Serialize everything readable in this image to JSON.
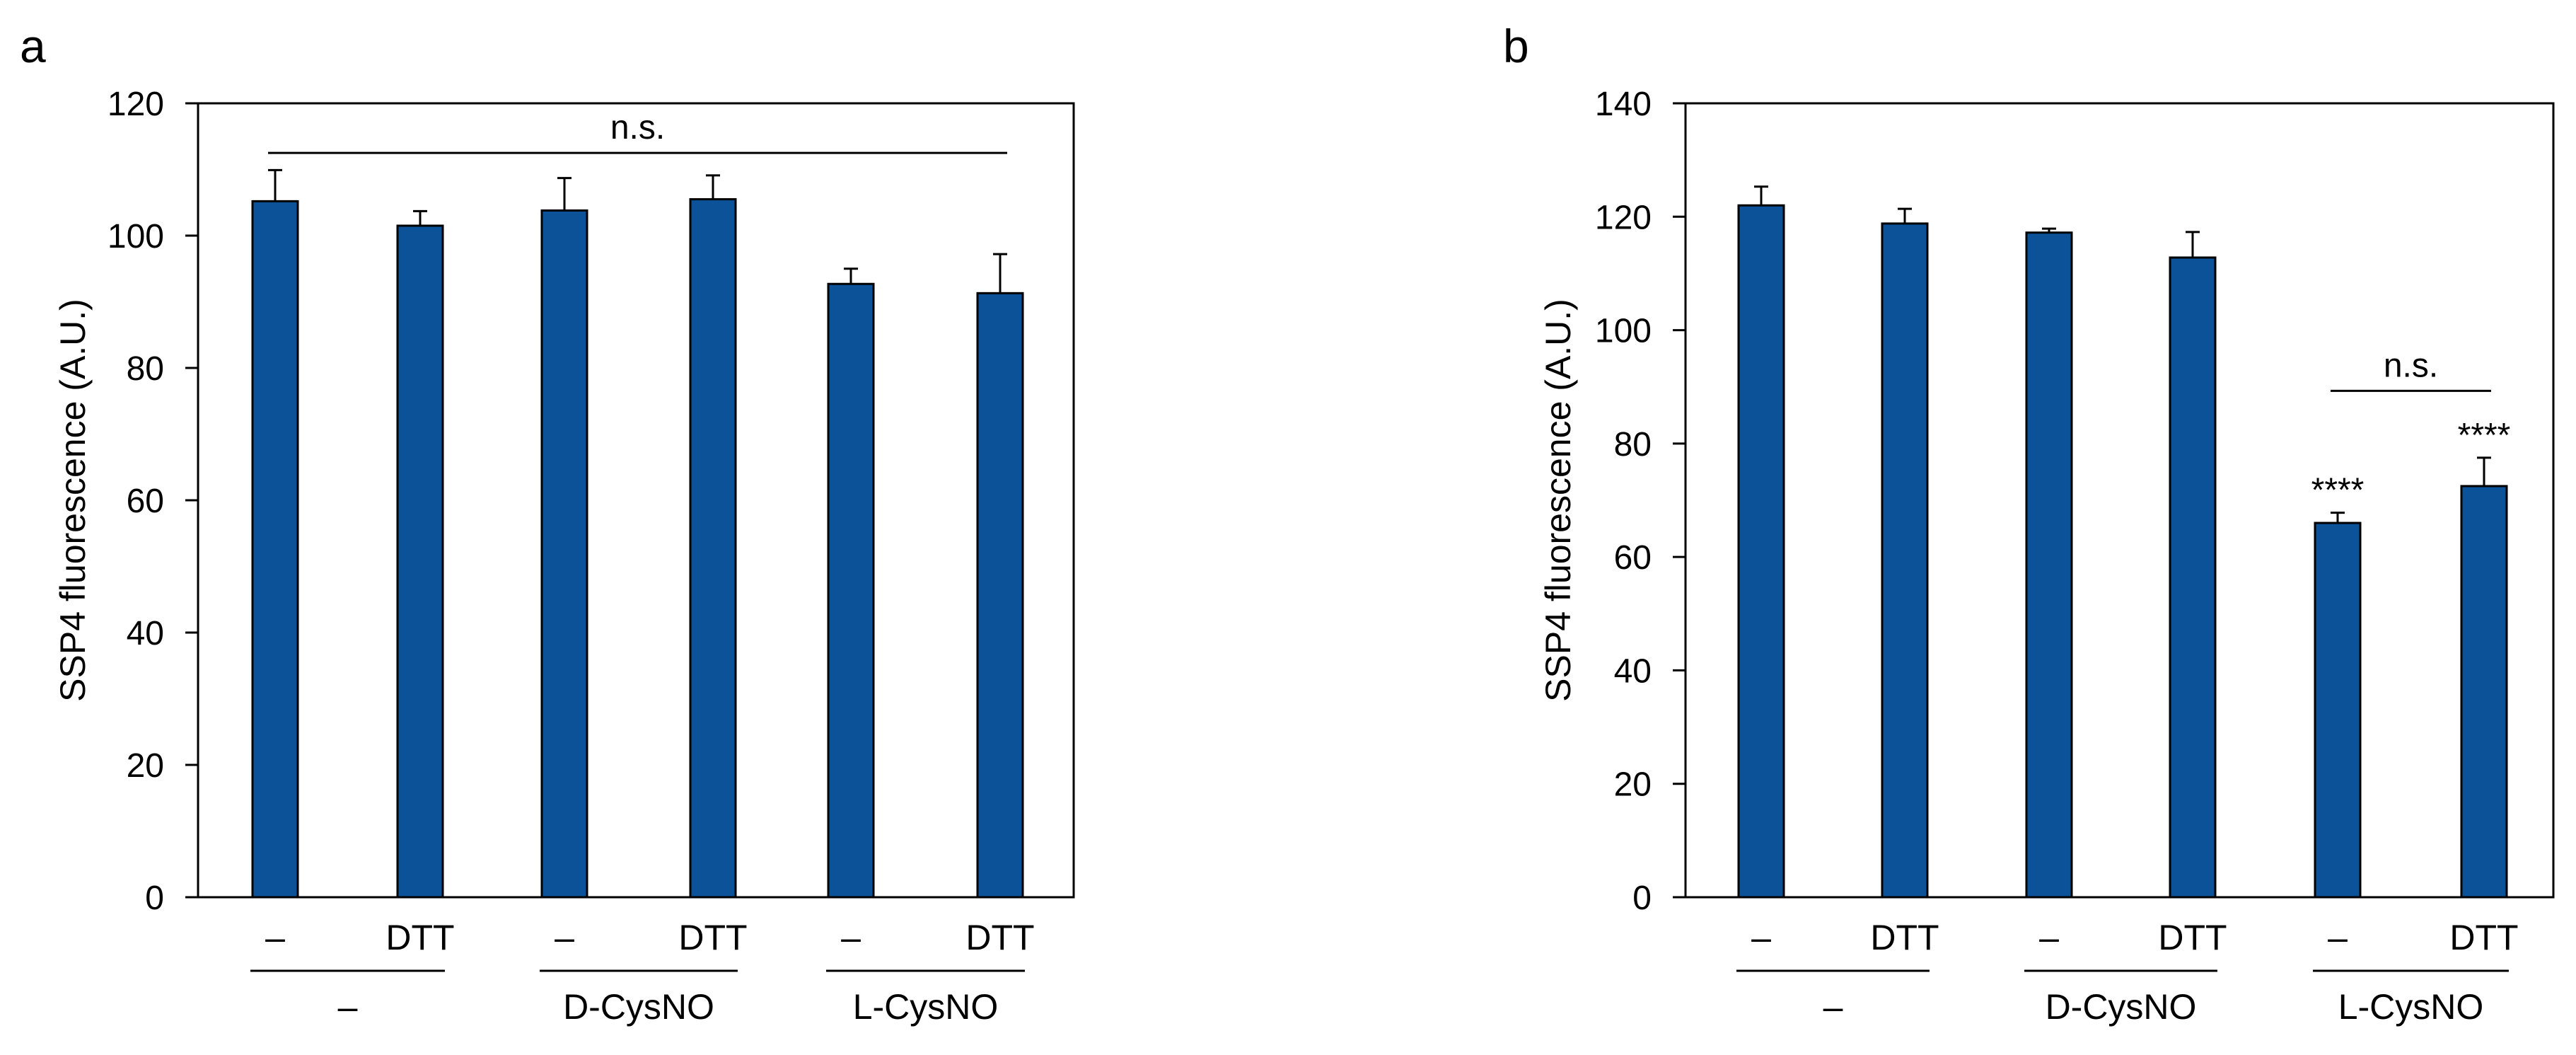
{
  "chart_data": [
    {
      "type": "bar",
      "panel": "a",
      "title": "",
      "xlabel": "",
      "ylabel": "SSP4 fluorescence (A.U.)",
      "ylim": [
        0,
        120
      ],
      "yticks": [
        0,
        20,
        40,
        60,
        80,
        100,
        120
      ],
      "grid": false,
      "categories": [
        "–",
        "DTT",
        "–",
        "DTT",
        "–",
        "DTT"
      ],
      "groups": [
        "–",
        "D-CysNO",
        "L-CysNO"
      ],
      "values": [
        105.2,
        101.5,
        103.8,
        105.5,
        92.7,
        91.3
      ],
      "errors": [
        4.7,
        2.2,
        4.9,
        3.6,
        2.3,
        5.9
      ],
      "significance": [
        {
          "from": 0,
          "to": 5,
          "label": "n.s.",
          "y": 112.5
        }
      ],
      "bar_labels": [
        "",
        "",
        "",
        "",
        "",
        ""
      ]
    },
    {
      "type": "bar",
      "panel": "b",
      "title": "",
      "xlabel": "",
      "ylabel": "SSP4 fluorescence (A.U.)",
      "ylim": [
        0,
        140
      ],
      "yticks": [
        0,
        20,
        40,
        60,
        80,
        100,
        120,
        140
      ],
      "grid": false,
      "categories": [
        "–",
        "DTT",
        "–",
        "DTT",
        "–",
        "DTT"
      ],
      "groups": [
        "–",
        "D-CysNO",
        "L-CysNO"
      ],
      "values": [
        122.0,
        118.8,
        117.2,
        112.8,
        66.0,
        72.5
      ],
      "errors": [
        3.3,
        2.6,
        0.7,
        4.5,
        1.8,
        5.0
      ],
      "significance": [
        {
          "from": 4,
          "to": 5,
          "label": "n.s.",
          "y": 89.3
        }
      ],
      "bar_labels": [
        "",
        "",
        "",
        "",
        "****",
        "****"
      ]
    }
  ]
}
